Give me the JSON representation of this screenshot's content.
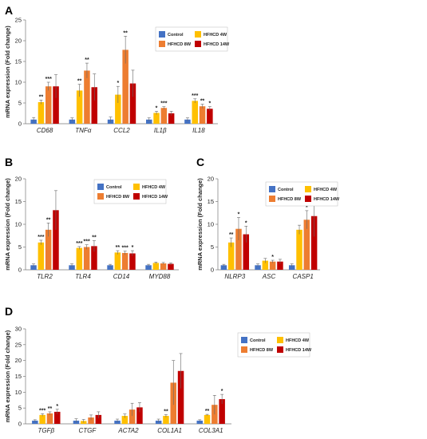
{
  "colors": {
    "series": [
      "#4472c4",
      "#ffc000",
      "#ed7d31",
      "#c00000"
    ],
    "error_bar": "#666666"
  },
  "chart_data": [
    {
      "panel": "A",
      "type": "bar",
      "ylabel": "mRNA expression (Fold change)",
      "ylim": [
        0,
        25
      ],
      "yticks": [
        0,
        5,
        10,
        15,
        20,
        25
      ],
      "categories": [
        "CD68",
        "TNFα",
        "CCL2",
        "IL1β",
        "IL18"
      ],
      "legend": [
        "Control",
        "HFHCD  4W",
        "HFHCD  8W",
        "HFHCD  14W"
      ],
      "series": [
        {
          "name": "Control",
          "values": [
            1.0,
            1.0,
            1.0,
            1.0,
            1.0
          ],
          "errors": [
            0.5,
            0.4,
            0.6,
            0.4,
            0.4
          ]
        },
        {
          "name": "HFHCD  4W",
          "values": [
            5.2,
            8.0,
            7.0,
            2.6,
            5.5
          ],
          "errors": [
            0.5,
            1.5,
            2.0,
            0.4,
            0.5
          ]
        },
        {
          "name": "HFHCD  8W",
          "values": [
            9.0,
            12.8,
            17.8,
            3.8,
            4.2
          ],
          "errors": [
            1.0,
            1.8,
            3.3,
            0.3,
            0.5
          ]
        },
        {
          "name": "HFHCD  14W",
          "values": [
            9.0,
            8.8,
            9.7,
            2.5,
            3.6
          ],
          "errors": [
            2.8,
            3.2,
            3.2,
            0.5,
            0.5
          ]
        }
      ],
      "significance": [
        [
          "",
          "**",
          "***",
          ""
        ],
        [
          "",
          "**",
          "**",
          ""
        ],
        [
          "",
          "*",
          "**",
          ""
        ],
        [
          "",
          "*",
          "***",
          ""
        ],
        [
          "",
          "***",
          "**",
          "*"
        ]
      ]
    },
    {
      "panel": "B",
      "type": "bar",
      "ylabel": "mRNA expression (Fold change)",
      "ylim": [
        0,
        20
      ],
      "yticks": [
        0,
        5,
        10,
        15,
        20
      ],
      "categories": [
        "TLR2",
        "TLR4",
        "CD14",
        "MYD88"
      ],
      "legend": [
        "Control",
        "HFHCD  4W",
        "HFHCD  8W",
        "HFHCD  14W"
      ],
      "series": [
        {
          "name": "Control",
          "values": [
            1.0,
            1.0,
            1.0,
            1.0
          ],
          "errors": [
            0.3,
            0.3,
            0.2,
            0.2
          ]
        },
        {
          "name": "HFHCD  4W",
          "values": [
            6.0,
            4.8,
            3.8,
            1.5
          ],
          "errors": [
            0.5,
            0.3,
            0.4,
            0.2
          ]
        },
        {
          "name": "HFHCD  8W",
          "values": [
            8.8,
            5.0,
            3.7,
            1.4
          ],
          "errors": [
            1.5,
            0.5,
            0.4,
            0.2
          ]
        },
        {
          "name": "HFHCD  14W",
          "values": [
            13.1,
            5.2,
            3.6,
            1.3
          ],
          "errors": [
            4.3,
            1.2,
            0.6,
            0.2
          ]
        }
      ],
      "significance": [
        [
          "",
          "***",
          "**",
          ""
        ],
        [
          "",
          "***",
          "***",
          "**"
        ],
        [
          "",
          "**",
          "***",
          "*"
        ],
        [
          "",
          "",
          "",
          ""
        ]
      ]
    },
    {
      "panel": "C",
      "type": "bar",
      "ylabel": "mRNA expression (Fold change)",
      "ylim": [
        0,
        20
      ],
      "yticks": [
        0,
        5,
        10,
        15,
        20
      ],
      "categories": [
        "NLRP3",
        "ASC",
        "CASP1"
      ],
      "legend": [
        "Control",
        "HFHCD  4W",
        "HFHCD  8W",
        "HFHCD  14W"
      ],
      "series": [
        {
          "name": "Control",
          "values": [
            1.0,
            1.0,
            1.0
          ],
          "errors": [
            0.2,
            0.3,
            0.3
          ]
        },
        {
          "name": "HFHCD  4W",
          "values": [
            6.0,
            2.0,
            8.8
          ],
          "errors": [
            1.0,
            0.5,
            1.0
          ]
        },
        {
          "name": "HFHCD  8W",
          "values": [
            9.0,
            1.8,
            11.0
          ],
          "errors": [
            2.5,
            0.3,
            2.0
          ]
        },
        {
          "name": "HFHCD  14W",
          "values": [
            7.8,
            1.8,
            11.8
          ],
          "errors": [
            1.8,
            0.5,
            4.5
          ]
        }
      ],
      "significance": [
        [
          "",
          "**",
          "*",
          "*"
        ],
        [
          "",
          "",
          "*",
          ""
        ],
        [
          "",
          "",
          "*",
          ""
        ]
      ]
    },
    {
      "panel": "D",
      "type": "bar",
      "ylabel": "mRNA expression (Fold change)",
      "ylim": [
        0,
        30
      ],
      "yticks": [
        0,
        5,
        10,
        15,
        20,
        25,
        30
      ],
      "categories": [
        "TGFβ",
        "CTGF",
        "ACTA2",
        "COL1A1",
        "COL3A1"
      ],
      "legend": [
        "Control",
        "HFHCD  4W",
        "HFHCD  8W",
        "HFHCD  14W"
      ],
      "series": [
        {
          "name": "Control",
          "values": [
            1.0,
            1.0,
            1.0,
            1.0,
            1.0
          ],
          "errors": [
            0.3,
            0.6,
            0.5,
            0.5,
            0.3
          ]
        },
        {
          "name": "HFHCD  4W",
          "values": [
            2.8,
            0.9,
            2.5,
            2.5,
            2.8
          ],
          "errors": [
            0.4,
            0.5,
            0.6,
            0.4,
            0.2
          ]
        },
        {
          "name": "HFHCD  8W",
          "values": [
            3.3,
            2.0,
            4.5,
            13.0,
            6.0
          ],
          "errors": [
            0.5,
            0.8,
            2.0,
            7.0,
            3.0
          ]
        },
        {
          "name": "HFHCD  14W",
          "values": [
            3.8,
            2.8,
            5.2,
            16.7,
            7.8
          ],
          "errors": [
            0.8,
            1.0,
            1.5,
            5.5,
            1.5
          ]
        }
      ],
      "significance": [
        [
          "",
          "***",
          "**",
          "*"
        ],
        [
          "",
          "",
          "",
          ""
        ],
        [
          "",
          "",
          "",
          ""
        ],
        [
          "",
          "**",
          "",
          ""
        ],
        [
          "",
          "**",
          "",
          "*"
        ]
      ]
    }
  ]
}
